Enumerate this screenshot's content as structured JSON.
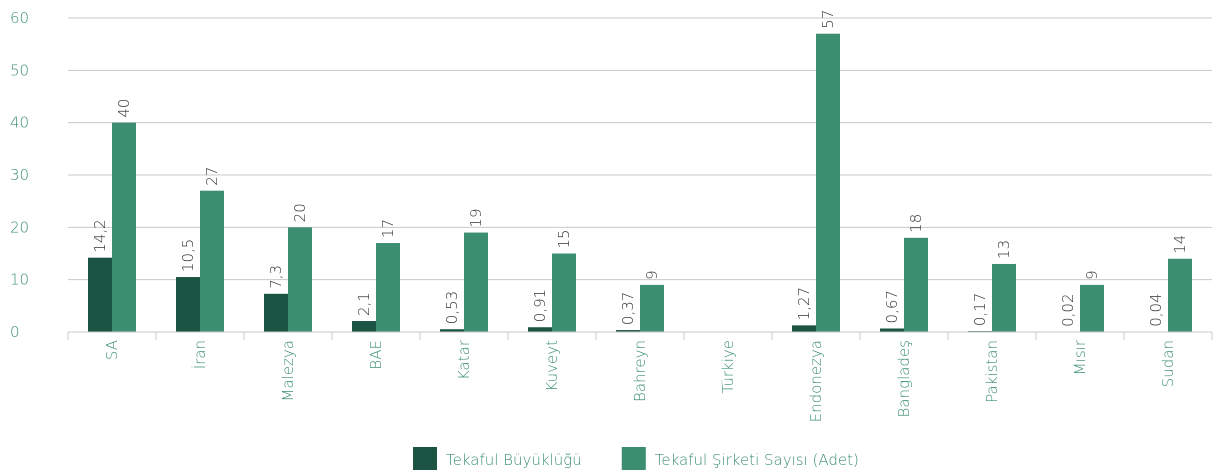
{
  "chart_data": {
    "type": "bar",
    "categories": [
      "SA",
      "İran",
      "Malezya",
      "BAE",
      "Katar",
      "Kuveyt",
      "Bahreyn",
      "Türkiye",
      "Endonezya",
      "Bangladeş",
      "Pakistan",
      "Mısır",
      "Sudan"
    ],
    "series": [
      {
        "name": "Tekaful Büyüklüğü",
        "color": "#1c5444",
        "values": [
          14.2,
          10.5,
          7.3,
          2.1,
          0.53,
          0.91,
          0.37,
          null,
          1.27,
          0.67,
          0.17,
          0.02,
          0.04
        ],
        "value_labels": [
          "14,2",
          "10,5",
          "7,3",
          "2,1",
          "0,53",
          "0,91",
          "0,37",
          null,
          "1,27",
          "0,67",
          "0,17",
          "0,02",
          "0,04"
        ]
      },
      {
        "name": "Tekaful Şirketi Sayısı (Adet)",
        "color": "#3b8e70",
        "values": [
          40,
          27,
          20,
          17,
          19,
          15,
          9,
          null,
          57,
          18,
          13,
          9,
          14
        ]
      }
    ],
    "ylim": [
      0,
      60
    ],
    "yticks": [
      0,
      10,
      20,
      30,
      40,
      50,
      60
    ],
    "grid": true,
    "legend": "bottom"
  }
}
